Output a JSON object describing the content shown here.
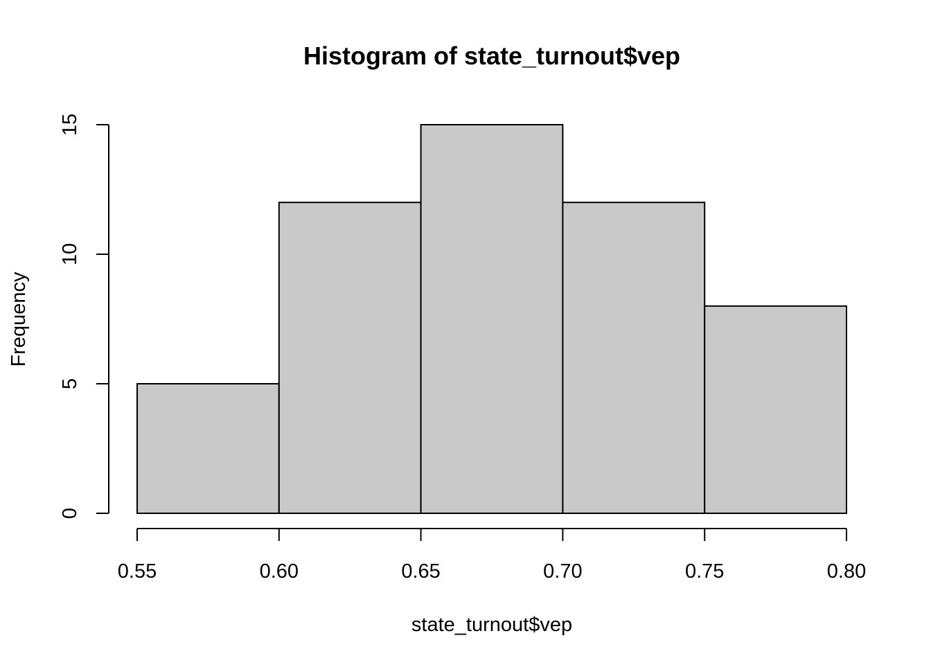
{
  "chart_data": {
    "type": "bar",
    "title": "Histogram of state_turnout$vep",
    "xlabel": "state_turnout$vep",
    "ylabel": "Frequency",
    "bins": [
      {
        "from": 0.55,
        "to": 0.6,
        "count": 5
      },
      {
        "from": 0.6,
        "to": 0.65,
        "count": 12
      },
      {
        "from": 0.65,
        "to": 0.7,
        "count": 15
      },
      {
        "from": 0.7,
        "to": 0.75,
        "count": 12
      },
      {
        "from": 0.75,
        "to": 0.8,
        "count": 8
      }
    ],
    "xlim": [
      0.55,
      0.8
    ],
    "ylim": [
      0,
      15
    ],
    "x_ticks": [
      "0.55",
      "0.60",
      "0.65",
      "0.70",
      "0.75",
      "0.80"
    ],
    "y_ticks": [
      "0",
      "5",
      "10",
      "15"
    ],
    "grid": false,
    "legend": "none",
    "colors": {
      "bar_fill": "#c9c9c9",
      "bar_stroke": "#000000"
    }
  }
}
